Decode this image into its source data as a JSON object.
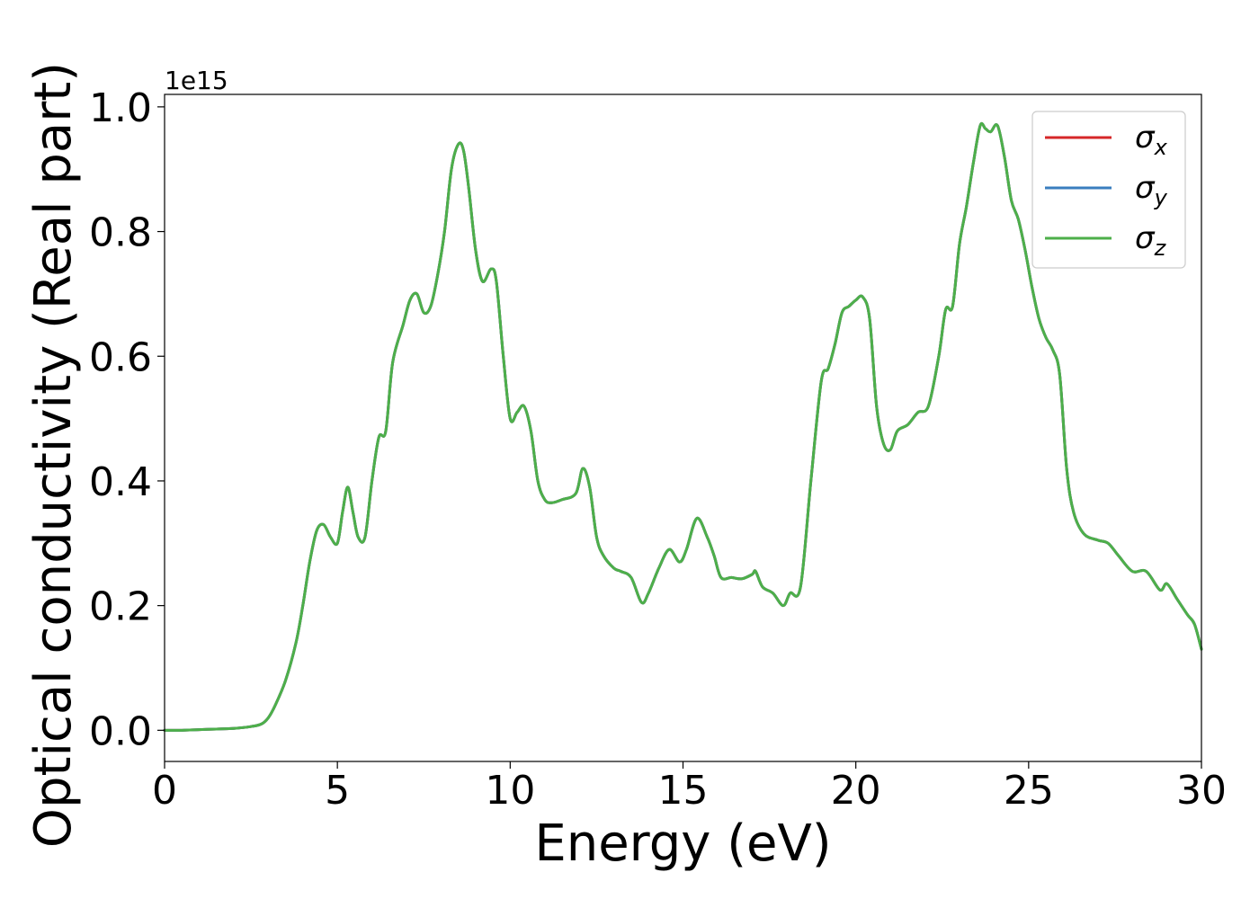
{
  "chart_data": {
    "type": "line",
    "title": "",
    "xlabel": "Energy (eV)",
    "ylabel": "Optical conductivity (Real part)",
    "y_offset_label": "1e15",
    "xlim": [
      0,
      30
    ],
    "ylim": [
      -0.05,
      1.02
    ],
    "x_ticks": [
      0,
      5,
      10,
      15,
      20,
      25,
      30
    ],
    "x_tick_labels": [
      "0",
      "5",
      "10",
      "15",
      "20",
      "25",
      "30"
    ],
    "y_ticks": [
      0.0,
      0.2,
      0.4,
      0.6,
      0.8,
      1.0
    ],
    "y_tick_labels": [
      "0.0",
      "0.2",
      "0.4",
      "0.6",
      "0.8",
      "1.0"
    ],
    "grid": false,
    "legend_position": "top-right",
    "legend": [
      {
        "symbol": "σ",
        "subscript": "x",
        "color": "#d62728"
      },
      {
        "symbol": "σ",
        "subscript": "y",
        "color": "#3a7ebf"
      },
      {
        "symbol": "σ",
        "subscript": "z",
        "color": "#4daf4a"
      }
    ],
    "x": [
      0,
      0.5,
      1,
      1.5,
      2,
      2.5,
      2.8,
      3.0,
      3.2,
      3.5,
      3.8,
      4.0,
      4.2,
      4.4,
      4.6,
      4.8,
      5.0,
      5.15,
      5.3,
      5.45,
      5.6,
      5.8,
      6.0,
      6.2,
      6.4,
      6.6,
      6.9,
      7.1,
      7.3,
      7.5,
      7.7,
      7.9,
      8.1,
      8.3,
      8.5,
      8.65,
      8.8,
      9.0,
      9.2,
      9.45,
      9.6,
      9.8,
      10.0,
      10.2,
      10.4,
      10.6,
      10.8,
      11.0,
      11.2,
      11.5,
      11.9,
      12.1,
      12.3,
      12.5,
      12.7,
      13.0,
      13.2,
      13.5,
      13.8,
      14.0,
      14.3,
      14.6,
      14.9,
      15.1,
      15.4,
      15.7,
      15.9,
      16.1,
      16.4,
      16.7,
      17.0,
      17.1,
      17.3,
      17.6,
      17.9,
      18.1,
      18.4,
      18.7,
      19.0,
      19.2,
      19.4,
      19.6,
      19.8,
      20.0,
      20.2,
      20.4,
      20.6,
      20.8,
      21.0,
      21.2,
      21.5,
      21.8,
      22.1,
      22.4,
      22.6,
      22.8,
      23.0,
      23.2,
      23.4,
      23.6,
      23.75,
      23.9,
      24.1,
      24.3,
      24.5,
      24.7,
      24.9,
      25.1,
      25.3,
      25.5,
      25.7,
      25.9,
      26.1,
      26.3,
      26.6,
      27.0,
      27.3,
      27.6,
      28.0,
      28.4,
      28.8,
      29.0,
      29.3,
      29.6,
      29.8,
      30.0
    ],
    "series": [
      {
        "name": "σx",
        "color": "#d62728",
        "values": [
          0,
          0,
          0.001,
          0.002,
          0.003,
          0.006,
          0.01,
          0.02,
          0.04,
          0.08,
          0.14,
          0.2,
          0.27,
          0.32,
          0.33,
          0.31,
          0.3,
          0.35,
          0.39,
          0.35,
          0.31,
          0.31,
          0.4,
          0.47,
          0.48,
          0.59,
          0.65,
          0.69,
          0.7,
          0.67,
          0.68,
          0.73,
          0.8,
          0.9,
          0.94,
          0.93,
          0.87,
          0.77,
          0.72,
          0.74,
          0.72,
          0.6,
          0.5,
          0.51,
          0.52,
          0.48,
          0.4,
          0.37,
          0.365,
          0.37,
          0.38,
          0.42,
          0.39,
          0.31,
          0.28,
          0.26,
          0.255,
          0.245,
          0.205,
          0.22,
          0.26,
          0.29,
          0.27,
          0.29,
          0.34,
          0.31,
          0.28,
          0.245,
          0.245,
          0.243,
          0.25,
          0.255,
          0.23,
          0.22,
          0.2,
          0.22,
          0.23,
          0.4,
          0.56,
          0.58,
          0.62,
          0.67,
          0.68,
          0.69,
          0.695,
          0.66,
          0.52,
          0.46,
          0.45,
          0.48,
          0.49,
          0.51,
          0.52,
          0.6,
          0.675,
          0.68,
          0.78,
          0.84,
          0.91,
          0.97,
          0.965,
          0.96,
          0.97,
          0.92,
          0.85,
          0.82,
          0.77,
          0.71,
          0.66,
          0.63,
          0.61,
          0.57,
          0.42,
          0.35,
          0.315,
          0.305,
          0.3,
          0.28,
          0.255,
          0.255,
          0.225,
          0.235,
          0.21,
          0.185,
          0.17,
          0.13
        ]
      },
      {
        "name": "σy",
        "color": "#3a7ebf",
        "values": [
          0,
          0,
          0.001,
          0.002,
          0.003,
          0.006,
          0.01,
          0.02,
          0.04,
          0.08,
          0.14,
          0.2,
          0.27,
          0.32,
          0.33,
          0.31,
          0.3,
          0.35,
          0.39,
          0.35,
          0.31,
          0.31,
          0.4,
          0.47,
          0.48,
          0.59,
          0.65,
          0.69,
          0.7,
          0.67,
          0.68,
          0.73,
          0.8,
          0.9,
          0.94,
          0.93,
          0.87,
          0.77,
          0.72,
          0.74,
          0.72,
          0.6,
          0.5,
          0.51,
          0.52,
          0.48,
          0.4,
          0.37,
          0.365,
          0.37,
          0.38,
          0.42,
          0.39,
          0.31,
          0.28,
          0.26,
          0.255,
          0.245,
          0.205,
          0.22,
          0.26,
          0.29,
          0.27,
          0.29,
          0.34,
          0.31,
          0.28,
          0.245,
          0.245,
          0.243,
          0.25,
          0.255,
          0.23,
          0.22,
          0.2,
          0.22,
          0.23,
          0.4,
          0.56,
          0.58,
          0.62,
          0.67,
          0.68,
          0.69,
          0.695,
          0.66,
          0.52,
          0.46,
          0.45,
          0.48,
          0.49,
          0.51,
          0.52,
          0.6,
          0.675,
          0.68,
          0.78,
          0.84,
          0.91,
          0.97,
          0.965,
          0.96,
          0.97,
          0.92,
          0.85,
          0.82,
          0.77,
          0.71,
          0.66,
          0.63,
          0.61,
          0.57,
          0.42,
          0.35,
          0.315,
          0.305,
          0.3,
          0.28,
          0.255,
          0.255,
          0.225,
          0.235,
          0.21,
          0.185,
          0.17,
          0.13
        ]
      },
      {
        "name": "σz",
        "color": "#4daf4a",
        "values": [
          0,
          0,
          0.001,
          0.002,
          0.003,
          0.006,
          0.01,
          0.02,
          0.04,
          0.08,
          0.14,
          0.2,
          0.27,
          0.32,
          0.33,
          0.31,
          0.3,
          0.35,
          0.39,
          0.35,
          0.31,
          0.31,
          0.4,
          0.47,
          0.48,
          0.59,
          0.65,
          0.69,
          0.7,
          0.67,
          0.68,
          0.73,
          0.8,
          0.9,
          0.94,
          0.93,
          0.87,
          0.77,
          0.72,
          0.74,
          0.72,
          0.6,
          0.5,
          0.51,
          0.52,
          0.48,
          0.4,
          0.37,
          0.365,
          0.37,
          0.38,
          0.42,
          0.39,
          0.31,
          0.28,
          0.26,
          0.255,
          0.245,
          0.205,
          0.22,
          0.26,
          0.29,
          0.27,
          0.29,
          0.34,
          0.31,
          0.28,
          0.245,
          0.245,
          0.243,
          0.25,
          0.255,
          0.23,
          0.22,
          0.2,
          0.22,
          0.23,
          0.4,
          0.56,
          0.58,
          0.62,
          0.67,
          0.68,
          0.69,
          0.695,
          0.66,
          0.52,
          0.46,
          0.45,
          0.48,
          0.49,
          0.51,
          0.52,
          0.6,
          0.675,
          0.68,
          0.78,
          0.84,
          0.91,
          0.97,
          0.965,
          0.96,
          0.97,
          0.92,
          0.85,
          0.82,
          0.77,
          0.71,
          0.66,
          0.63,
          0.61,
          0.57,
          0.42,
          0.35,
          0.315,
          0.305,
          0.3,
          0.28,
          0.255,
          0.255,
          0.225,
          0.235,
          0.21,
          0.185,
          0.17,
          0.13
        ]
      }
    ]
  }
}
